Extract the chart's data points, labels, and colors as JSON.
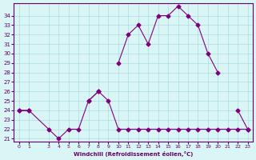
{
  "xlabel": "Windchill (Refroidissement éolien,°C)",
  "x_values": [
    0,
    1,
    3,
    4,
    5,
    6,
    7,
    8,
    9,
    10,
    11,
    12,
    13,
    14,
    15,
    16,
    17,
    18,
    19,
    20,
    21,
    22,
    23
  ],
  "y_line1": [
    24,
    24,
    22,
    21,
    22,
    22,
    25,
    26,
    25,
    22,
    22,
    22,
    22,
    22,
    22,
    22,
    22,
    22,
    22,
    22,
    22,
    22,
    22
  ],
  "y_line2": [
    24,
    24,
    null,
    null,
    null,
    null,
    25,
    26,
    null,
    29,
    32,
    33,
    31,
    34,
    34,
    35,
    34,
    33,
    30,
    28,
    null,
    24,
    22
  ],
  "line_color": "#800080",
  "bg_color": "#d9f5f5",
  "grid_color": "#aadddd",
  "ylim": [
    21,
    35
  ],
  "xlim": [
    -0.5,
    23.5
  ],
  "yticks": [
    21,
    22,
    23,
    24,
    25,
    26,
    27,
    28,
    29,
    30,
    31,
    32,
    33,
    34
  ],
  "xticks": [
    0,
    1,
    3,
    4,
    5,
    6,
    7,
    8,
    9,
    10,
    11,
    12,
    13,
    14,
    15,
    16,
    17,
    18,
    19,
    20,
    21,
    22,
    23
  ]
}
